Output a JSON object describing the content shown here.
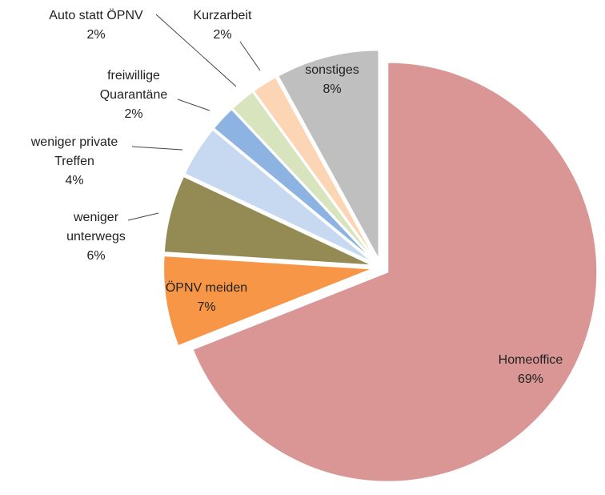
{
  "chart_data": {
    "type": "pie",
    "categories": [
      "Homeoffice",
      "ÖPNV meiden",
      "weniger unterwegs",
      "weniger private Treffen",
      "freiwillige Quarantäne",
      "Auto statt ÖPNV",
      "Kurzarbeit",
      "sonstiges"
    ],
    "values": [
      69,
      7,
      6,
      4,
      2,
      2,
      2,
      8
    ],
    "value_labels": [
      "69%",
      "7%",
      "6%",
      "4%",
      "2%",
      "2%",
      "2%",
      "8%"
    ],
    "colors": [
      "#d99694",
      "#f79646",
      "#948a54",
      "#c6d9f1",
      "#8db3e2",
      "#d7e4bd",
      "#fcd5b5",
      "#bfbfbf"
    ]
  }
}
